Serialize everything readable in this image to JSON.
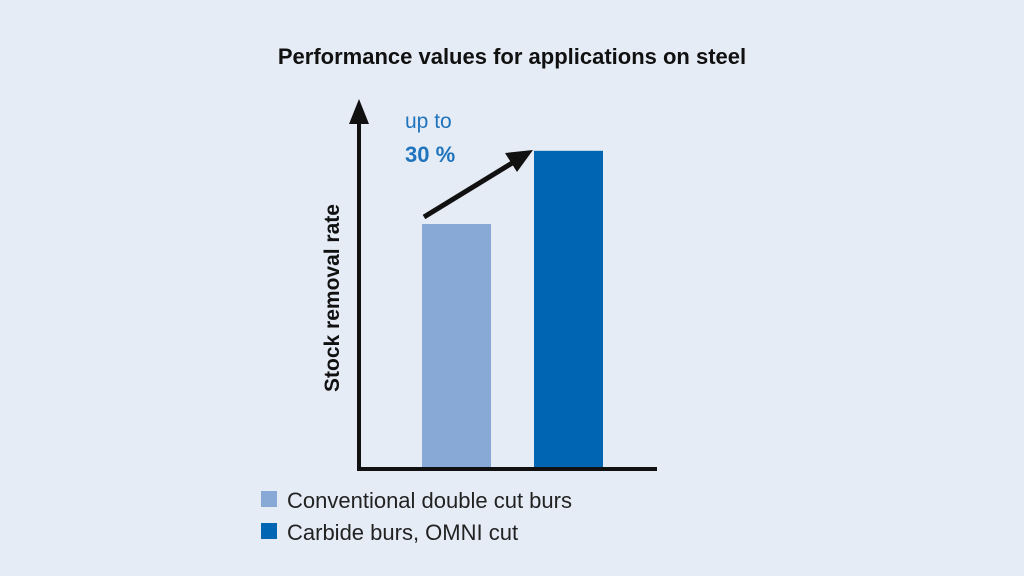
{
  "chart_data": {
    "type": "bar",
    "title": "Performance values for applications on steel",
    "xlabel": "",
    "ylabel": "Stock removal rate",
    "categories": [
      "Conventional double cut burs",
      "Carbide burs, OMNI cut"
    ],
    "values": [
      100,
      130
    ],
    "ylim": [
      0,
      150
    ],
    "grid": false,
    "colors": [
      "#88a8d6",
      "#0066b3"
    ],
    "annotation": {
      "line1": "up to",
      "line2": "30 %",
      "color": "#1f74bd"
    },
    "legend": {
      "placement": "bottom-left",
      "entries": [
        "Conventional double cut burs",
        "Carbide burs, OMNI cut"
      ]
    }
  }
}
